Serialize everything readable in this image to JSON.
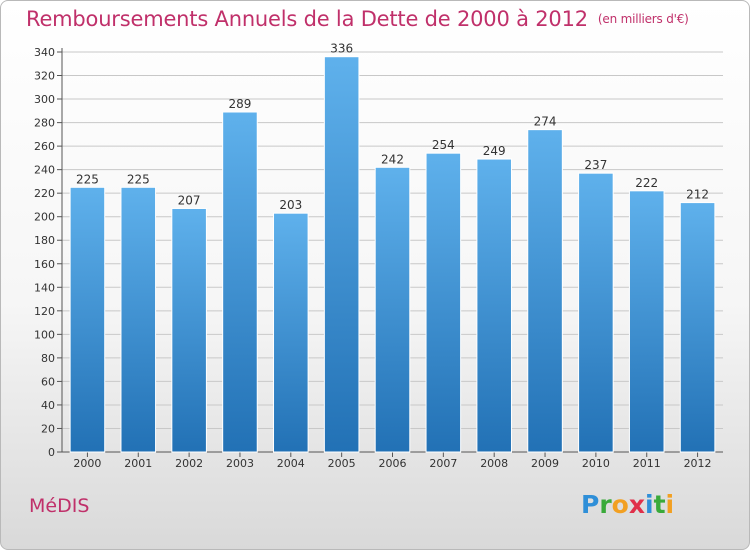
{
  "title": "Remboursements Annuels de la Dette de 2000 à 2012",
  "unit_note": "(en milliers d'€)",
  "commune": "MéDIS",
  "logo": {
    "text": "Proxiti",
    "letters": [
      {
        "char": "P",
        "color": "#2f8fd8"
      },
      {
        "char": "r",
        "color": "#3aaa3a"
      },
      {
        "char": "o",
        "color": "#f2a022"
      },
      {
        "char": "x",
        "color": "#e0304a"
      },
      {
        "char": "i",
        "color": "#2f8fd8"
      },
      {
        "char": "t",
        "color": "#3aaa3a"
      },
      {
        "char": "i",
        "color": "#f2a022"
      }
    ]
  },
  "colors": {
    "title": "#c0306a",
    "bar_top": "#5fb1ec",
    "bar_bottom": "#2271b5",
    "grid": "#c8c8c8",
    "axis": "#555555"
  },
  "chart_data": {
    "type": "bar",
    "categories": [
      "2000",
      "2001",
      "2002",
      "2003",
      "2004",
      "2005",
      "2006",
      "2007",
      "2008",
      "2009",
      "2010",
      "2011",
      "2012"
    ],
    "values": [
      225,
      225,
      207,
      289,
      203,
      336,
      242,
      254,
      249,
      274,
      237,
      222,
      212
    ],
    "data_labels": [
      "225",
      "225",
      "207",
      "289",
      "203",
      "336",
      "242",
      "254",
      "249",
      "274",
      "237",
      "222",
      "212"
    ],
    "ylim": [
      0,
      340
    ],
    "yticks": [
      0,
      20,
      40,
      60,
      80,
      100,
      120,
      140,
      160,
      180,
      200,
      220,
      240,
      260,
      280,
      300,
      320,
      340
    ],
    "grid": true,
    "xlabel": "",
    "ylabel": ""
  }
}
